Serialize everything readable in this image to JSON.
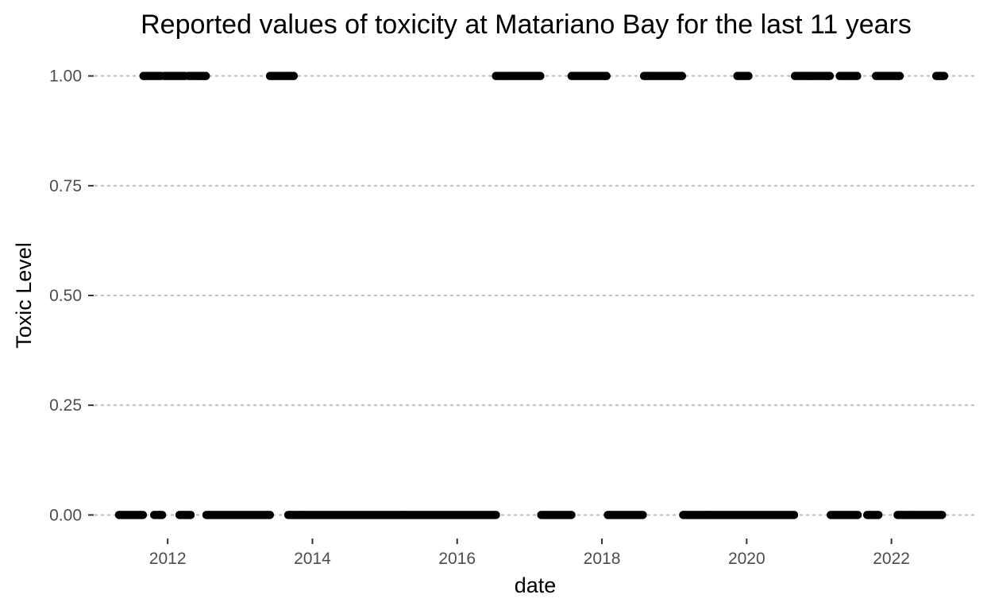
{
  "chart_data": {
    "type": "scatter",
    "title": "Reported values of toxicity at Matariano Bay for the last 11 years",
    "xlabel": "date",
    "ylabel": "Toxic Level",
    "x_ticks": [
      "2012",
      "2014",
      "2016",
      "2018",
      "2020",
      "2022"
    ],
    "y_ticks": [
      "0.00",
      "0.25",
      "0.50",
      "0.75",
      "1.00"
    ],
    "xlim": [
      2011.0,
      2023.2
    ],
    "ylim": [
      -0.05,
      1.05
    ],
    "grid": "horizontal-dotted",
    "marker_color": "#000000",
    "series": [
      {
        "value": 1,
        "date_ranges": [
          [
            "2011-09-01",
            "2011-11-30"
          ],
          [
            "2011-12-15",
            "2012-04-01"
          ],
          [
            "2012-04-15",
            "2012-07-15"
          ],
          [
            "2013-06-01",
            "2013-09-30"
          ],
          [
            "2016-07-15",
            "2017-03-01"
          ],
          [
            "2017-08-01",
            "2018-01-31"
          ],
          [
            "2018-08-01",
            "2019-02-15"
          ],
          [
            "2019-11-15",
            "2020-01-15"
          ],
          [
            "2020-09-01",
            "2021-03-01"
          ],
          [
            "2021-04-15",
            "2021-07-15"
          ],
          [
            "2021-10-15",
            "2022-02-15"
          ],
          [
            "2022-08-15",
            "2022-09-30"
          ]
        ]
      },
      {
        "value": 0,
        "date_ranges": [
          [
            "2011-05-01",
            "2011-08-31"
          ],
          [
            "2011-10-25",
            "2011-12-05"
          ],
          [
            "2012-03-01",
            "2012-05-01"
          ],
          [
            "2012-07-15",
            "2013-06-01"
          ],
          [
            "2013-09-01",
            "2016-07-15"
          ],
          [
            "2017-03-01",
            "2017-08-01"
          ],
          [
            "2018-01-31",
            "2018-08-01"
          ],
          [
            "2019-02-15",
            "2019-12-15"
          ],
          [
            "2019-12-15",
            "2020-09-01"
          ],
          [
            "2021-03-01",
            "2021-07-15"
          ],
          [
            "2021-09-01",
            "2021-11-01"
          ],
          [
            "2022-02-01",
            "2022-09-15"
          ]
        ]
      }
    ]
  }
}
